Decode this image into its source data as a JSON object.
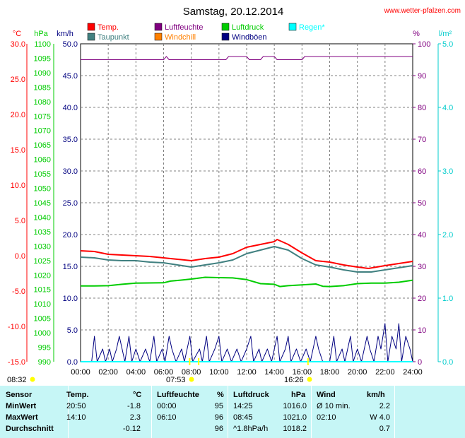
{
  "header": {
    "title": "Samstag, 20.12.2014",
    "site": "www.wetter-pfalzen.com"
  },
  "legend": [
    {
      "label": "Temp.",
      "color": "#ff0000"
    },
    {
      "label": "Luftfeuchte",
      "color": "#800080"
    },
    {
      "label": "Luftdruck",
      "color": "#00cc00"
    },
    {
      "label": "Regen*",
      "color": "#00ffff"
    },
    {
      "label": "Taupunkt",
      "color": "#408080"
    },
    {
      "label": "Windchill",
      "color": "#ff8000"
    },
    {
      "label": "Windböen",
      "color": "#000080"
    }
  ],
  "units": {
    "temp": "°C",
    "pressure": "hPa",
    "wind": "km/h",
    "humidity": "%",
    "rain": "l/m²"
  },
  "axes": {
    "temp_ticks": [
      "30.0",
      "25.0",
      "20.0",
      "15.0",
      "10.0",
      "5.0",
      "0.0",
      "-5.0",
      "-10.0",
      "-15.0"
    ],
    "pressure_ticks": [
      "1100",
      "1095",
      "1090",
      "1085",
      "1080",
      "1075",
      "1070",
      "1065",
      "1060",
      "1055",
      "1050",
      "1045",
      "1040",
      "1035",
      "1030",
      "1025",
      "1020",
      "1015",
      "1010",
      "1005",
      "1000",
      "995",
      "990"
    ],
    "wind_ticks": [
      "50.0",
      "45.0",
      "40.0",
      "35.0",
      "30.0",
      "25.0",
      "20.0",
      "15.0",
      "10.0",
      "5.0",
      "0.0"
    ],
    "humidity_ticks": [
      "100",
      "90",
      "80",
      "70",
      "60",
      "50",
      "40",
      "30",
      "20",
      "10",
      "0"
    ],
    "rain_ticks": [
      "5.0",
      "4.0",
      "3.0",
      "2.0",
      "1.0",
      "0.0"
    ],
    "x_ticks": [
      "00:00",
      "02:00",
      "04:00",
      "06:00",
      "08:00",
      "10:00",
      "12:00",
      "14:00",
      "16:00",
      "18:00",
      "20:00",
      "22:00",
      "24:00"
    ]
  },
  "sun": {
    "sunrise": "08:32",
    "noon": "07:53",
    "sunset": "16:26"
  },
  "chart_data": {
    "type": "line",
    "title": "Samstag, 20.12.2014",
    "x_unit": "hours",
    "xlim": [
      0,
      24
    ],
    "series": [
      {
        "name": "Temp.",
        "color": "#ff0000",
        "unit": "°C",
        "ylim": [
          -15,
          30
        ],
        "points": [
          [
            0,
            0.7
          ],
          [
            1,
            0.6
          ],
          [
            2,
            0.2
          ],
          [
            3,
            0.1
          ],
          [
            4,
            0.0
          ],
          [
            5,
            -0.1
          ],
          [
            6,
            -0.3
          ],
          [
            7,
            -0.5
          ],
          [
            8,
            -0.7
          ],
          [
            9,
            -0.4
          ],
          [
            10,
            -0.2
          ],
          [
            11,
            0.3
          ],
          [
            12,
            1.2
          ],
          [
            13,
            1.6
          ],
          [
            14,
            2.0
          ],
          [
            14.2,
            2.3
          ],
          [
            15,
            1.6
          ],
          [
            16,
            0.4
          ],
          [
            17,
            -0.7
          ],
          [
            18,
            -0.9
          ],
          [
            19,
            -1.3
          ],
          [
            20,
            -1.6
          ],
          [
            20.8,
            -1.8
          ],
          [
            22,
            -1.4
          ],
          [
            23,
            -1.1
          ],
          [
            24,
            -0.8
          ]
        ]
      },
      {
        "name": "Taupunkt",
        "color": "#408080",
        "unit": "°C",
        "ylim": [
          -15,
          30
        ],
        "points": [
          [
            0,
            -0.2
          ],
          [
            1,
            -0.3
          ],
          [
            2,
            -0.6
          ],
          [
            3,
            -0.7
          ],
          [
            4,
            -0.7
          ],
          [
            5,
            -0.9
          ],
          [
            6,
            -1.0
          ],
          [
            7,
            -1.3
          ],
          [
            8,
            -1.6
          ],
          [
            9,
            -1.3
          ],
          [
            10,
            -1.0
          ],
          [
            11,
            -0.6
          ],
          [
            12,
            0.3
          ],
          [
            13,
            0.8
          ],
          [
            14,
            1.3
          ],
          [
            15,
            0.8
          ],
          [
            16,
            -0.4
          ],
          [
            17,
            -1.3
          ],
          [
            18,
            -1.6
          ],
          [
            19,
            -2.0
          ],
          [
            20,
            -2.3
          ],
          [
            21,
            -2.3
          ],
          [
            22,
            -2.0
          ],
          [
            23,
            -1.7
          ],
          [
            24,
            -1.4
          ]
        ]
      },
      {
        "name": "Luftfeuchte",
        "color": "#800080",
        "unit": "%",
        "ylim": [
          0,
          100
        ],
        "points": [
          [
            0,
            95
          ],
          [
            6,
            95
          ],
          [
            6.2,
            96
          ],
          [
            6.4,
            95
          ],
          [
            10.5,
            95
          ],
          [
            10.7,
            96
          ],
          [
            12,
            96
          ],
          [
            12.2,
            95
          ],
          [
            13,
            95
          ],
          [
            13.2,
            96
          ],
          [
            14,
            96
          ],
          [
            14.2,
            95
          ],
          [
            16,
            95
          ],
          [
            16.2,
            96
          ],
          [
            24,
            96
          ]
        ]
      },
      {
        "name": "Luftdruck",
        "color": "#00cc00",
        "unit": "hPa",
        "ylim": [
          990,
          1100
        ],
        "points": [
          [
            0,
            1016.2
          ],
          [
            1,
            1016.2
          ],
          [
            2,
            1016.3
          ],
          [
            3,
            1016.8
          ],
          [
            4,
            1017.2
          ],
          [
            6,
            1017.3
          ],
          [
            6.5,
            1017.9
          ],
          [
            7,
            1018.1
          ],
          [
            8,
            1018.6
          ],
          [
            9,
            1019.2
          ],
          [
            10,
            1019.1
          ],
          [
            11,
            1019.0
          ],
          [
            12,
            1018.4
          ],
          [
            13,
            1017.0
          ],
          [
            14,
            1016.8
          ],
          [
            14.4,
            1016.0
          ],
          [
            15,
            1016.3
          ],
          [
            16,
            1016.6
          ],
          [
            17,
            1016.9
          ],
          [
            17.5,
            1016.1
          ],
          [
            18,
            1016.0
          ],
          [
            19,
            1016.3
          ],
          [
            20,
            1017.0
          ],
          [
            21,
            1017.2
          ],
          [
            22,
            1017.2
          ],
          [
            23,
            1017.5
          ],
          [
            24,
            1018.2
          ]
        ]
      },
      {
        "name": "Windböen",
        "color": "#000080",
        "unit": "km/h",
        "ylim": [
          0,
          50
        ],
        "points": [
          [
            0,
            0
          ],
          [
            0.8,
            0
          ],
          [
            1,
            4
          ],
          [
            1.2,
            0
          ],
          [
            1.6,
            2
          ],
          [
            1.8,
            0
          ],
          [
            2.1,
            2
          ],
          [
            2.3,
            0
          ],
          [
            2.6,
            2
          ],
          [
            2.8,
            4
          ],
          [
            3.0,
            2
          ],
          [
            3.2,
            0
          ],
          [
            3.5,
            4
          ],
          [
            3.7,
            0
          ],
          [
            4,
            2
          ],
          [
            4.3,
            0
          ],
          [
            4.7,
            2
          ],
          [
            5,
            0
          ],
          [
            5.3,
            4
          ],
          [
            5.5,
            0
          ],
          [
            5.9,
            2
          ],
          [
            6.1,
            0
          ],
          [
            6.4,
            4
          ],
          [
            6.6,
            2
          ],
          [
            6.9,
            0
          ],
          [
            7.3,
            2
          ],
          [
            7.5,
            0
          ],
          [
            7.9,
            4
          ],
          [
            8.1,
            0
          ],
          [
            8.6,
            2
          ],
          [
            8.8,
            0
          ],
          [
            9.1,
            4
          ],
          [
            9.3,
            0
          ],
          [
            9.7,
            2
          ],
          [
            10,
            4
          ],
          [
            10.2,
            0
          ],
          [
            10.6,
            2
          ],
          [
            10.9,
            0
          ],
          [
            11.3,
            2
          ],
          [
            11.6,
            0
          ],
          [
            12,
            2
          ],
          [
            12.3,
            4
          ],
          [
            12.5,
            0
          ],
          [
            12.9,
            2
          ],
          [
            13.1,
            0
          ],
          [
            13.5,
            2
          ],
          [
            13.8,
            0
          ],
          [
            14.2,
            4
          ],
          [
            14.4,
            0
          ],
          [
            14.8,
            2
          ],
          [
            15,
            4
          ],
          [
            15.2,
            0
          ],
          [
            15.6,
            2
          ],
          [
            15.9,
            0
          ],
          [
            16.3,
            2
          ],
          [
            16.6,
            0
          ],
          [
            17,
            4
          ],
          [
            17.2,
            2
          ],
          [
            17.5,
            0
          ],
          [
            18,
            0
          ],
          [
            18.3,
            4
          ],
          [
            18.5,
            0
          ],
          [
            18.9,
            2
          ],
          [
            19.1,
            0
          ],
          [
            19.5,
            4
          ],
          [
            19.7,
            0
          ],
          [
            20,
            2
          ],
          [
            20.3,
            0
          ],
          [
            20.7,
            4
          ],
          [
            20.9,
            2
          ],
          [
            21.2,
            0
          ],
          [
            21.5,
            4
          ],
          [
            21.7,
            2
          ],
          [
            22,
            6
          ],
          [
            22.2,
            0
          ],
          [
            22.5,
            4
          ],
          [
            22.8,
            2
          ],
          [
            23,
            6
          ],
          [
            23.2,
            0
          ],
          [
            23.5,
            4
          ],
          [
            23.8,
            2
          ],
          [
            24,
            0
          ]
        ]
      },
      {
        "name": "Regen*",
        "color": "#00ffff",
        "unit": "l/m²",
        "ylim": [
          0,
          5
        ],
        "points": [
          [
            0,
            0
          ],
          [
            24,
            0
          ]
        ]
      }
    ]
  },
  "stats": {
    "headers": [
      "Sensor",
      "Temp.",
      "°C",
      "Luftfeuchte",
      "%",
      "Luftdruck",
      "hPa",
      "Wind",
      "km/h"
    ],
    "rows": [
      [
        "MinWert",
        "20:50",
        "-1.8",
        "00:00",
        "95",
        "14:25",
        "1016.0",
        "Ø 10 min.",
        "2.2"
      ],
      [
        "MaxWert",
        "14:10",
        "2.3",
        "06:10",
        "96",
        "08:45",
        "1021.0",
        "02:10",
        "W 4.0"
      ],
      [
        "Durchschnitt",
        "",
        "-0.12",
        "",
        "96",
        "^1.8hPa/h",
        "1018.2",
        "",
        "0.7"
      ]
    ]
  }
}
